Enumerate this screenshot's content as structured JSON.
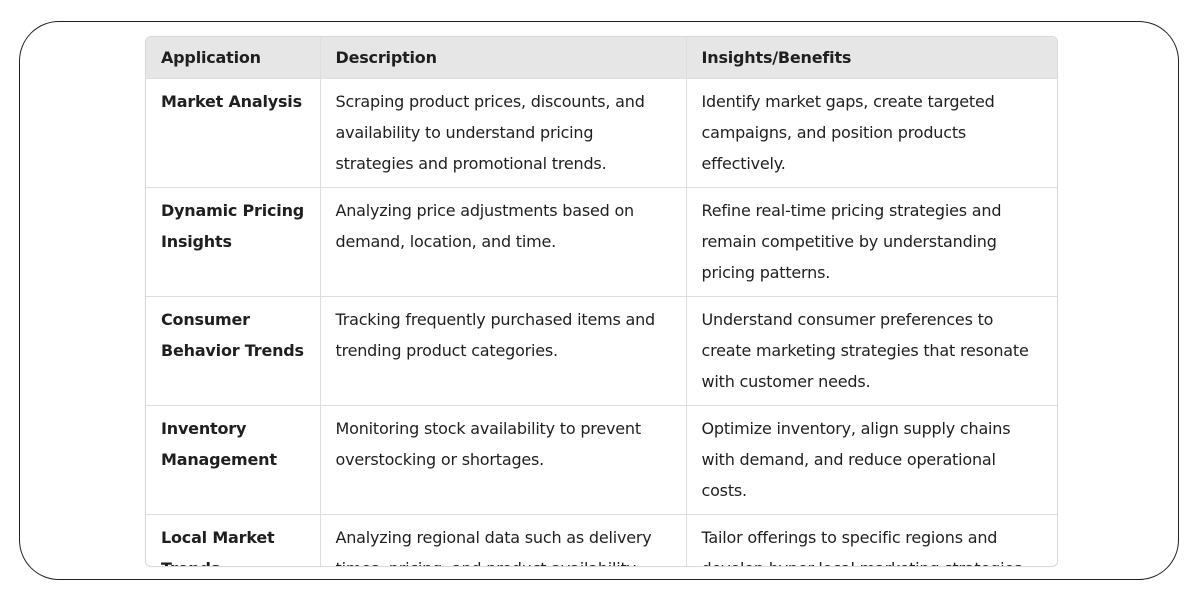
{
  "table": {
    "headers": [
      "Application",
      "Description",
      "Insights/Benefits"
    ],
    "rows": [
      {
        "application": "Market Analysis",
        "description": "Scraping product prices, discounts, and availability to understand pricing strategies and promotional trends.",
        "insights": "Identify market gaps, create targeted campaigns, and position products effectively."
      },
      {
        "application": "Dynamic Pricing Insights",
        "description": "Analyzing price adjustments based on demand, location, and time.",
        "insights": "Refine real-time pricing strategies and remain competitive by understanding pricing patterns."
      },
      {
        "application": "Consumer Behavior Trends",
        "description": "Tracking frequently purchased items and trending product categories.",
        "insights": "Understand consumer preferences to create marketing strategies that resonate with customer needs."
      },
      {
        "application": "Inventory Management",
        "description": "Monitoring stock availability to prevent overstocking or shortages.",
        "insights": "Optimize inventory, align supply chains with demand, and reduce operational costs."
      },
      {
        "application": "Local Market Trends",
        "description": "Analyzing regional data such as delivery times, pricing, and product availability.",
        "insights": "Tailor offerings to specific regions and develop hyper-local marketing strategies."
      }
    ]
  },
  "colors": {
    "header_bg": "#e6e6e6",
    "border": "#dedede",
    "text": "#1f1f1f",
    "frame_border": "#222222"
  }
}
